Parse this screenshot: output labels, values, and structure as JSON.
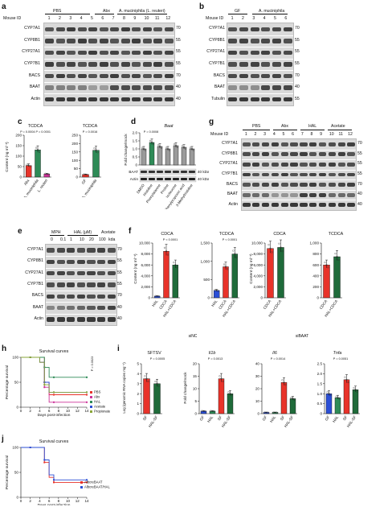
{
  "panels": {
    "a": {
      "label": "a",
      "mouse_id_label": "Mouse ID",
      "groups": [
        "PBS",
        "Abx",
        "A. muciniphila (L. reuteri)"
      ],
      "lanes": [
        "1",
        "2",
        "3",
        "4",
        "5",
        "6",
        "7",
        "8",
        "9",
        "10",
        "11",
        "12"
      ],
      "rows": [
        "CYP7A1",
        "CYP8B1",
        "CYP27A1",
        "CYP7B1",
        "BACS",
        "BAAT",
        "Actin"
      ],
      "kda": [
        "70",
        "55",
        "55",
        "55",
        "70",
        "40",
        "40"
      ]
    },
    "b": {
      "label": "b",
      "mouse_id_label": "Mouse ID",
      "groups": [
        "GF",
        "A. muciniphila"
      ],
      "lanes": [
        "1",
        "2",
        "3",
        "4",
        "5",
        "6"
      ],
      "rows": [
        "CYP7A1",
        "CYP8B1",
        "CYP27A1",
        "CYP7B1",
        "BACS",
        "BAAT",
        "Tubulin"
      ],
      "kda": [
        "70",
        "55",
        "55",
        "55",
        "70",
        "40",
        "55"
      ]
    },
    "c": {
      "label": "c",
      "left_title": "TCDCA",
      "right_title": "TCDCA",
      "ylabel": "Content (ng ml⁻¹)",
      "left_cats": [
        "Abx",
        "A. muciniphila",
        "L. reuteri"
      ],
      "right_cats": [
        "GF",
        "A. muciniphila"
      ],
      "left_p": "P = 0.0004  P = 0.0001",
      "right_p": "P = 0.0016",
      "left_ticks": [
        "0",
        "50",
        "100",
        "150",
        "200"
      ],
      "right_ticks": [
        "0",
        "50",
        "100",
        "150",
        "200",
        "250"
      ]
    },
    "d": {
      "label": "d",
      "title": "Baat",
      "ylabel": "Fold change/mock",
      "p": "P = 0.0008",
      "ticks": [
        "0",
        "0.5",
        "1.0",
        "1.5",
        "2.0"
      ],
      "cats": [
        "DMSO",
        "Histidine",
        "Phenylalanine",
        "Proline",
        "Isoleucine",
        "Phenylpropionic acid",
        "3-Methylhistidine"
      ],
      "rows": [
        "BAAT",
        "Actin"
      ],
      "kda": [
        "40 kDa",
        "40 kDa"
      ]
    },
    "e": {
      "label": "e",
      "header_mph": "MPH",
      "header_hal": "HAL (μM)",
      "header_acetate": "Acetate",
      "lanes": [
        "0",
        "0.1",
        "1",
        "10",
        "20",
        "100",
        "kda"
      ],
      "rows": [
        "CYP7A1",
        "CYP8B1",
        "CYP27A1",
        "CYP7B1",
        "BACS",
        "BAAT",
        "Actin"
      ],
      "kda": [
        "70",
        "55",
        "55",
        "55",
        "70",
        "40",
        "40"
      ]
    },
    "f": {
      "label": "f",
      "titles": [
        "CDCA",
        "TCDCA",
        "CDCA",
        "TCDCA"
      ],
      "ylabel": "Content (ng ml⁻¹)",
      "left_cats": [
        "HAL",
        "CDCA",
        "HAL+CDCA"
      ],
      "right_cats": [
        "CDCA",
        "HAL+CDCA"
      ],
      "p1": "P < 0.0001",
      "p2": "P < 0.0001",
      "group1": "siNC",
      "group2": "siBAAT"
    },
    "g": {
      "label": "g",
      "mouse_id_label": "Mouse ID",
      "groups": [
        "PBS",
        "Abx",
        "HAL",
        "Acetate"
      ],
      "lanes": [
        "1",
        "2",
        "3",
        "4",
        "5",
        "6",
        "7",
        "8",
        "9",
        "10",
        "11",
        "12"
      ],
      "rows": [
        "CYP7A1",
        "CYP8B1",
        "CYP27A1",
        "CYP7B1",
        "BACS",
        "BAAT",
        "Actin"
      ],
      "kda": [
        "70",
        "55",
        "55",
        "55",
        "70",
        "40",
        "40"
      ]
    },
    "h": {
      "label": "h",
      "title": "Survival curves",
      "ylabel": "Percentage survival",
      "xlabel": "Days post-infection",
      "xticks": [
        "0",
        "2",
        "4",
        "6",
        "8",
        "10",
        "12",
        "14"
      ],
      "yticks": [
        "0",
        "50",
        "100"
      ],
      "legend": [
        "PBS",
        "Abx",
        "HAL",
        "Acetate",
        "Propionate"
      ],
      "p": "P = 0.0023"
    },
    "i": {
      "label": "i",
      "titles": [
        "SFTSV",
        "Il1b",
        "Il6",
        "Tnfa"
      ],
      "ylabel1": "Log (genomic RNA copies mg⁻¹)",
      "ylabel2": "Fold change/mock",
      "p1": "P = 0.0005",
      "p2": "P = 0.0013",
      "p3": "P = 0.0014",
      "p4": "P = 0.0051",
      "cats1": [
        "SF",
        "HAL-SF"
      ],
      "cats2": [
        "GF",
        "HAL",
        "SF",
        "HAL-SF"
      ]
    },
    "j": {
      "label": "j",
      "title": "Survival curves",
      "ylabel": "Percentage survival",
      "xlabel": "Days post-infection",
      "xticks": [
        "0",
        "2",
        "4",
        "6",
        "8",
        "10",
        "12",
        "14"
      ],
      "yticks": [
        "0",
        "50",
        "100"
      ],
      "legend": [
        "AlbcreBAAT",
        "AlbcreBAAT/HAL"
      ]
    }
  },
  "chart_data": [
    {
      "type": "bar",
      "title": "TCDCA",
      "categories": [
        "Abx",
        "A. muciniphila",
        "L. reuteri"
      ],
      "values": [
        55,
        130,
        15
      ],
      "ylim": [
        0,
        200
      ]
    },
    {
      "type": "bar",
      "title": "TCDCA",
      "categories": [
        "GF",
        "A. muciniphila"
      ],
      "values": [
        15,
        160
      ],
      "ylim": [
        0,
        250
      ]
    },
    {
      "type": "bar",
      "title": "Baat",
      "categories": [
        "DMSO",
        "Histidine",
        "Phenylalanine",
        "Proline",
        "Isoleucine",
        "Phenylpropionic acid",
        "3-Methylhistidine"
      ],
      "values": [
        1.0,
        1.4,
        1.15,
        1.0,
        1.2,
        1.1,
        1.0
      ],
      "ylim": [
        0,
        2.0
      ]
    },
    {
      "type": "bar",
      "title": "CDCA",
      "categories": [
        "HAL",
        "CDCA",
        "HAL+CDCA"
      ],
      "values": [
        300,
        8500,
        6000
      ],
      "ylim": [
        0,
        10000
      ]
    },
    {
      "type": "bar",
      "title": "TCDCA",
      "categories": [
        "HAL",
        "CDCA",
        "HAL+CDCA"
      ],
      "values": [
        200,
        850,
        1200
      ],
      "ylim": [
        0,
        1500
      ]
    },
    {
      "type": "bar",
      "title": "CDCA",
      "categories": [
        "CDCA",
        "HAL+CDCA"
      ],
      "values": [
        9000,
        9200
      ],
      "ylim": [
        0,
        10000
      ]
    },
    {
      "type": "bar",
      "title": "TCDCA",
      "categories": [
        "CDCA",
        "HAL+CDCA"
      ],
      "values": [
        600,
        750
      ],
      "ylim": [
        0,
        1000
      ]
    },
    {
      "type": "bar",
      "title": "SFTSV",
      "categories": [
        "SF",
        "HAL-SF"
      ],
      "values": [
        3.5,
        3.0
      ],
      "ylim": [
        0,
        5
      ]
    },
    {
      "type": "bar",
      "title": "Il1b",
      "categories": [
        "GF",
        "HAL",
        "SF",
        "HAL-SF"
      ],
      "values": [
        1,
        1,
        14,
        8
      ],
      "ylim": [
        0,
        20
      ]
    },
    {
      "type": "bar",
      "title": "Il6",
      "categories": [
        "GF",
        "HAL",
        "SF",
        "HAL-SF"
      ],
      "values": [
        1,
        1,
        25,
        12
      ],
      "ylim": [
        0,
        40
      ]
    },
    {
      "type": "bar",
      "title": "Tnfa",
      "categories": [
        "GF",
        "HAL",
        "SF",
        "HAL-SF"
      ],
      "values": [
        1.0,
        0.8,
        1.7,
        1.2
      ],
      "ylim": [
        0,
        2.5
      ]
    },
    {
      "type": "line",
      "title": "Survival curves",
      "x": [
        0,
        2,
        4,
        5,
        6,
        7,
        8,
        14
      ],
      "series": [
        {
          "name": "PBS",
          "values": [
            100,
            100,
            100,
            50,
            25,
            25,
            25,
            25
          ]
        },
        {
          "name": "Abx",
          "values": [
            100,
            100,
            90,
            40,
            10,
            10,
            10,
            10
          ]
        },
        {
          "name": "HAL",
          "values": [
            100,
            100,
            100,
            80,
            60,
            60,
            60,
            60
          ]
        },
        {
          "name": "Acetate",
          "values": [
            100,
            100,
            90,
            50,
            30,
            30,
            30,
            30
          ]
        },
        {
          "name": "Propionate",
          "values": [
            100,
            100,
            90,
            45,
            30,
            30,
            30,
            30
          ]
        }
      ],
      "ylim": [
        0,
        100
      ]
    },
    {
      "type": "line",
      "title": "Survival curves",
      "x": [
        0,
        2,
        4,
        5,
        6,
        7,
        8,
        14
      ],
      "series": [
        {
          "name": "AlbcreBAAT",
          "values": [
            100,
            100,
            100,
            70,
            40,
            30,
            30,
            30
          ]
        },
        {
          "name": "AlbcreBAAT/HAL",
          "values": [
            100,
            100,
            100,
            75,
            45,
            35,
            35,
            35
          ]
        }
      ],
      "ylim": [
        0,
        100
      ]
    }
  ],
  "colors": {
    "red": "#e8332a",
    "green": "#2e8b57",
    "magenta": "#cc3399",
    "blue": "#2b4fd6",
    "grey": "#9a9a9a",
    "olive": "#8aa63a",
    "darkgreen": "#1f6b3a"
  }
}
